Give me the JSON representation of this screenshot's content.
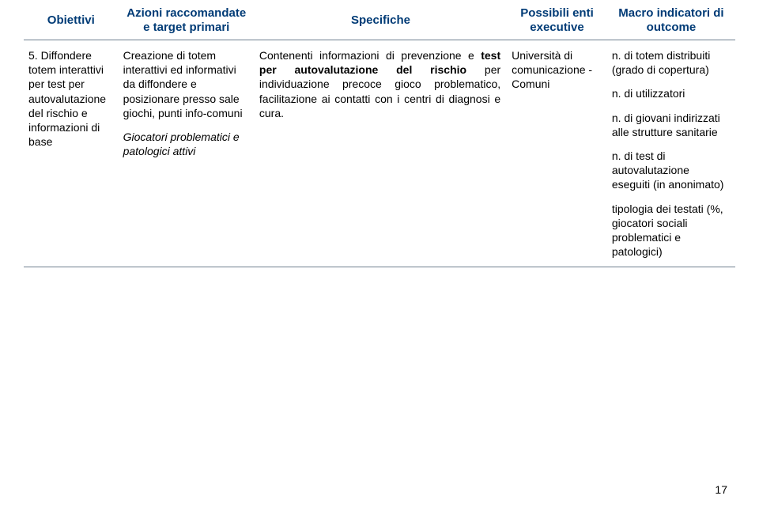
{
  "header": {
    "col1": "Obiettivi",
    "col2": "Azioni raccomandate e target primari",
    "col3": "Specifiche",
    "col4": "Possibili enti executive",
    "col5": "Macro indicatori di outcome"
  },
  "row": {
    "obiettivo_num": "5. Diffondere totem interattivi per test per autovalutazione del rischio e informazioni di base",
    "azioni_p1": "Creazione di totem interattivi ed informativi da diffondere e posizionare presso sale giochi, punti info-comuni",
    "azioni_p2": "Giocatori problematici e patologici attivi",
    "spec_pre": "Contenenti informazioni di prevenzione e ",
    "spec_b1": "test per autovalutazione del rischio",
    "spec_mid": " per individuazione precoce gioco problematico, facilitazione ai contatti con i centri di diagnosi e cura.",
    "enti": "Università di comunicazione - Comuni",
    "mi_1": "n. di totem distribuiti (grado di copertura)",
    "mi_2": "n. di utilizzatori",
    "mi_3": "n. di giovani indirizzati alle strutture sanitarie",
    "mi_4": "n. di test di autovalutazione eseguiti (in anonimato)",
    "mi_5": "tipologia dei testati (%, giocatori sociali problematici e patologici)"
  },
  "page_number": "17"
}
